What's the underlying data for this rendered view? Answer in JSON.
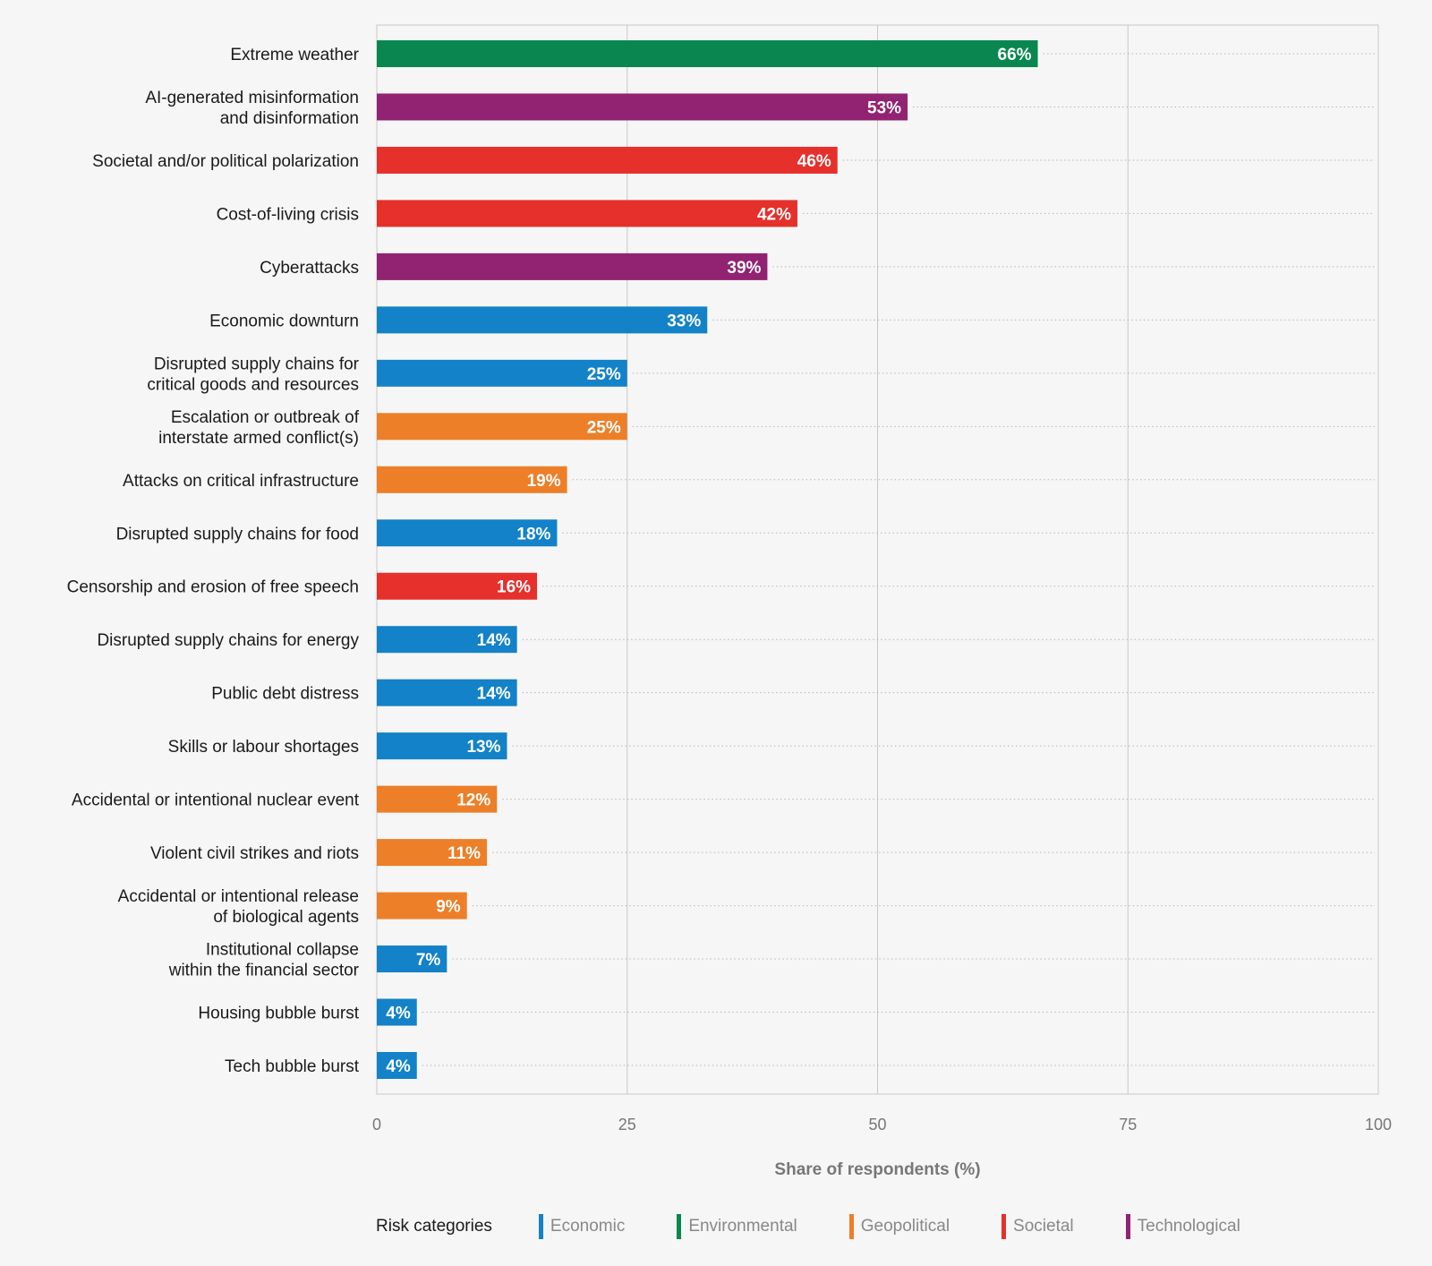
{
  "chart_data": {
    "type": "bar",
    "orientation": "horizontal",
    "categories": [
      "Extreme weather",
      "AI-generated misinformation\nand disinformation",
      "Societal and/or political polarization",
      "Cost-of-living crisis",
      "Cyberattacks",
      "Economic downturn",
      "Disrupted supply chains for\ncritical goods and resources",
      "Escalation or outbreak of\ninterstate armed conflict(s)",
      "Attacks on critical infrastructure",
      "Disrupted supply chains for food",
      "Censorship and erosion of free speech",
      "Disrupted supply chains for energy",
      "Public debt distress",
      "Skills or labour shortages",
      "Accidental or intentional nuclear event",
      "Violent civil strikes and riots",
      "Accidental or intentional release\nof biological agents",
      "Institutional collapse\nwithin the financial sector",
      "Housing bubble burst",
      "Tech bubble burst"
    ],
    "values": [
      66,
      53,
      46,
      42,
      39,
      33,
      25,
      25,
      19,
      18,
      16,
      14,
      14,
      13,
      12,
      11,
      9,
      7,
      4,
      4
    ],
    "labels": [
      "66%",
      "53%",
      "46%",
      "42%",
      "39%",
      "33%",
      "25%",
      "25%",
      "19%",
      "18%",
      "16%",
      "14%",
      "14%",
      "13%",
      "12%",
      "11%",
      "9%",
      "7%",
      "4%",
      "4%"
    ],
    "bar_categories": [
      "Environmental",
      "Technological",
      "Societal",
      "Societal",
      "Technological",
      "Economic",
      "Economic",
      "Geopolitical",
      "Geopolitical",
      "Economic",
      "Societal",
      "Economic",
      "Economic",
      "Economic",
      "Geopolitical",
      "Geopolitical",
      "Geopolitical",
      "Economic",
      "Economic",
      "Economic"
    ],
    "xlabel": "Share of respondents (%)",
    "xlim": [
      0,
      100
    ],
    "xticks": [
      "0",
      "25",
      "50",
      "75",
      "100"
    ],
    "grid": true,
    "legend": {
      "title": "Risk categories",
      "placement": "bottom",
      "items": [
        {
          "name": "Economic",
          "color": "#1382c8"
        },
        {
          "name": "Environmental",
          "color": "#0a8750"
        },
        {
          "name": "Geopolitical",
          "color": "#ec7f28"
        },
        {
          "name": "Societal",
          "color": "#e5302c"
        },
        {
          "name": "Technological",
          "color": "#922272"
        }
      ]
    }
  }
}
